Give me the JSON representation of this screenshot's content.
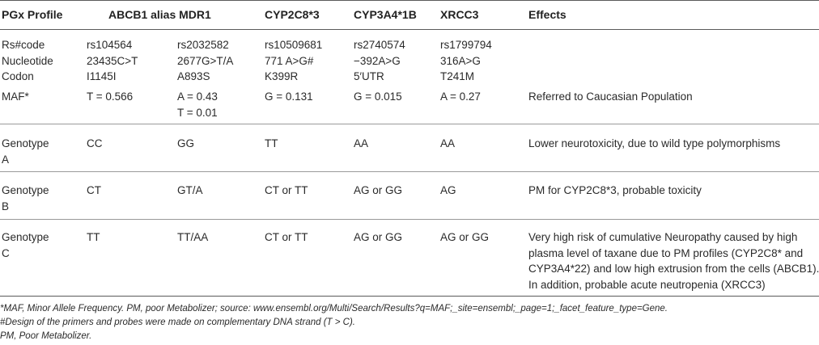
{
  "headers": {
    "profile": "PGx Profile",
    "abcb1": "ABCB1 alias MDR1",
    "cyp2c8": "CYP2C8*3",
    "cyp3a4": "CYP3A4*1B",
    "xrcc3": "XRCC3",
    "effects": "Effects"
  },
  "info_row": {
    "label": "Rs#code\nNucleotide\nCodon",
    "abcb1_a": "rs104564\n23435C>T\nI1145I",
    "abcb1_b": "rs2032582\n2677G>T/A\nA893S",
    "cyp2c8": "rs10509681\n771 A>G#\nK399R",
    "cyp3a4": "rs2740574\n−392A>G\n5′UTR",
    "xrcc3": "rs1799794\n316A>G\nT241M",
    "effects": ""
  },
  "maf_row": {
    "label": "MAF*",
    "abcb1_a": "T = 0.566",
    "abcb1_b": "A = 0.43\nT = 0.01",
    "cyp2c8": "G = 0.131",
    "cyp3a4": "G = 0.015",
    "xrcc3": "A = 0.27",
    "effects": "Referred to Caucasian Population"
  },
  "genotype_rows": [
    {
      "label": "Genotype\nA",
      "abcb1_a": "CC",
      "abcb1_b": "GG",
      "cyp2c8": "TT",
      "cyp3a4": "AA",
      "xrcc3": "AA",
      "effects": "Lower neurotoxicity, due to wild type polymorphisms"
    },
    {
      "label": "Genotype\nB",
      "abcb1_a": "CT",
      "abcb1_b": "GT/A",
      "cyp2c8": "CT or TT",
      "cyp3a4": "AG or GG",
      "xrcc3": "AG",
      "effects": "PM for CYP2C8*3, probable toxicity"
    },
    {
      "label": "Genotype\nC",
      "abcb1_a": "TT",
      "abcb1_b": "TT/AA",
      "cyp2c8": "CT or TT",
      "cyp3a4": "AG or GG",
      "xrcc3": "AG or GG",
      "effects": "Very high risk of cumulative Neuropathy caused by high\nplasma level of taxane due to PM profiles (CYP2C8* and\nCYP3A4*22) and low high extrusion from the cells (ABCB1).\nIn addition, probable acute neutropenia (XRCC3)"
    }
  ],
  "footnotes": [
    "*MAF, Minor Allele Frequency. PM, poor Metabolizer; source: www.ensembl.org/Multi/Search/Results?q=MAF;_site=ensembl;_page=1;_facet_feature_type=Gene.",
    "#Design of the primers and probes were made on complementary DNA strand (T > C).",
    "PM, Poor Metabolizer."
  ]
}
